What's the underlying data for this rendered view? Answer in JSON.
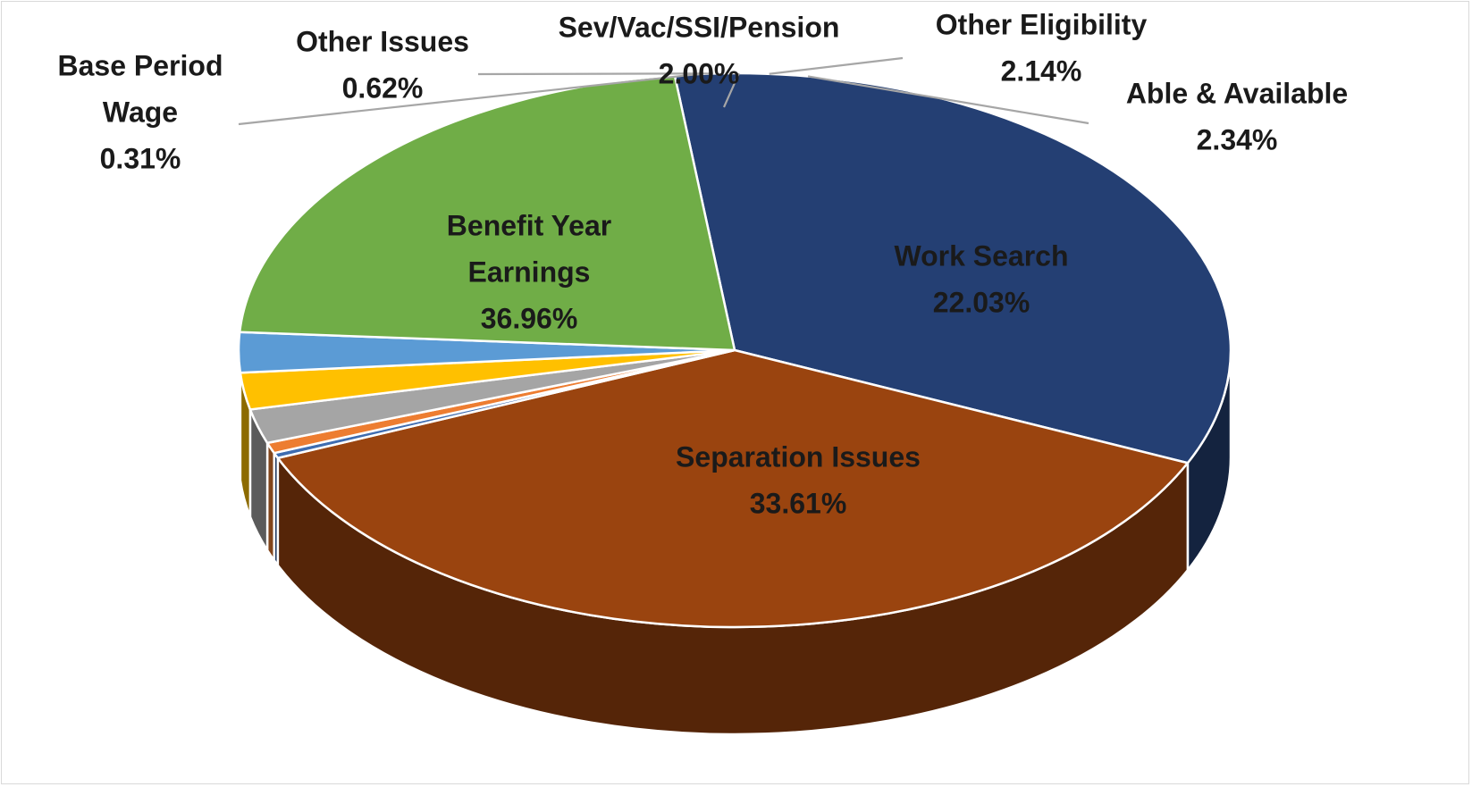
{
  "chart_data": {
    "type": "pie",
    "variant": "3d",
    "title": "",
    "start_angle_deg": 263.05,
    "direction": "clockwise",
    "slices": [
      {
        "key": "separation",
        "label": "Separation Issues",
        "display_value": "33.61%",
        "value": 33.61,
        "color": "#243F73",
        "label_color": "#1a1a1a",
        "label_placement": "inside",
        "label_lines": [
          "Separation Issues",
          "33.61%"
        ]
      },
      {
        "key": "benefit",
        "label": "Benefit Year Earnings",
        "display_value": "36.96%",
        "value": 36.96,
        "color": "#9A440F",
        "label_color": "#1a1a1a",
        "label_placement": "inside",
        "label_lines": [
          "Benefit Year",
          "Earnings",
          "36.96%"
        ]
      },
      {
        "key": "baseperiod",
        "label": "Base Period Wage",
        "display_value": "0.31%",
        "value": 0.31,
        "color": "#3E6CB0",
        "label_color": "#1a1a1a",
        "label_placement": "outside",
        "label_lines": [
          "Base Period",
          "Wage",
          "0.31%"
        ]
      },
      {
        "key": "otherissues",
        "label": "Other Issues",
        "display_value": "0.62%",
        "value": 0.62,
        "color": "#ED7D31",
        "label_color": "#1a1a1a",
        "label_placement": "outside",
        "label_lines": [
          "Other Issues",
          "0.62%"
        ]
      },
      {
        "key": "sev",
        "label": "Sev/Vac/SSI/Pension",
        "display_value": "2.00%",
        "value": 2.0,
        "color": "#A5A5A5",
        "label_color": "#1a1a1a",
        "label_placement": "outside",
        "label_lines": [
          "Sev/Vac/SSI/Pension",
          "2.00%"
        ]
      },
      {
        "key": "othereligibility",
        "label": "Other Eligibility",
        "display_value": "2.14%",
        "value": 2.14,
        "color": "#FFC000",
        "label_color": "#1a1a1a",
        "label_placement": "outside",
        "label_lines": [
          "Other Eligibility",
          "2.14%"
        ]
      },
      {
        "key": "able",
        "label": "Able & Available",
        "display_value": "2.34%",
        "value": 2.34,
        "color": "#5B9BD5",
        "label_color": "#1a1a1a",
        "label_placement": "outside",
        "label_lines": [
          "Able & Available",
          "2.34%"
        ]
      },
      {
        "key": "worksearch",
        "label": "Work Search",
        "display_value": "22.03%",
        "value": 22.03,
        "color": "#70AD47",
        "label_color": "#1a1a1a",
        "label_placement": "inside",
        "label_lines": [
          "Work Search",
          "22.03%"
        ]
      }
    ],
    "legend": false
  }
}
